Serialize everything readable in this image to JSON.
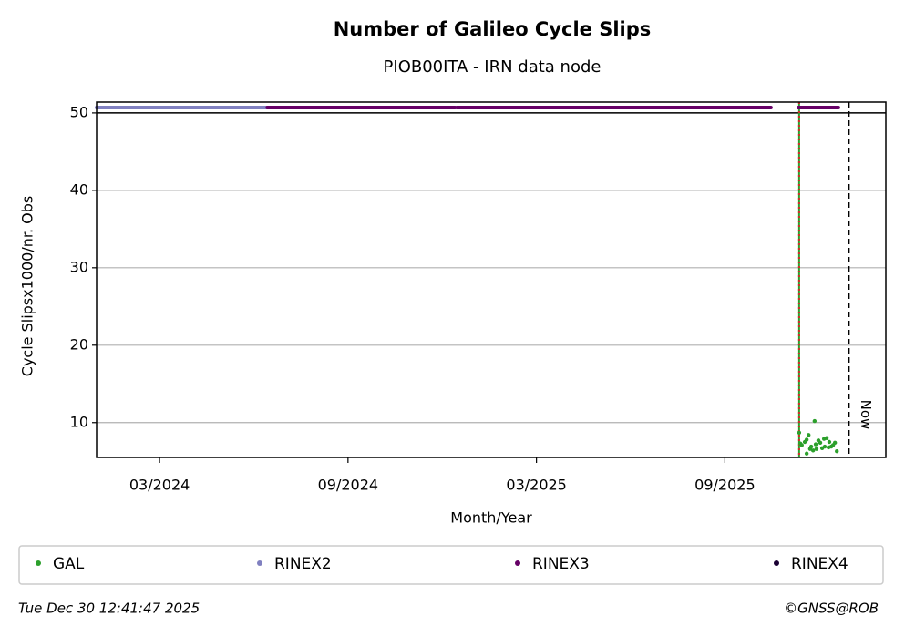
{
  "chart_data": {
    "type": "scatter",
    "title": "Number of Galileo Cycle Slips",
    "subtitle": "PIOB00ITA - IRN data node",
    "x_label": "Month/Year",
    "y_label": "Cycle Slipsx1000/nr. Obs",
    "xlim": [
      2024.0,
      2026.094
    ],
    "ylim": [
      5.5,
      51.4
    ],
    "xticks": [
      {
        "value": 2024.167,
        "label": "03/2024"
      },
      {
        "value": 2024.667,
        "label": "09/2024"
      },
      {
        "value": 2025.167,
        "label": "03/2025"
      },
      {
        "value": 2025.667,
        "label": "09/2025"
      }
    ],
    "yticks": [
      10,
      20,
      30,
      40,
      50
    ],
    "grid": true,
    "hlines": [
      50
    ],
    "markers": [
      {
        "x": 2025.864,
        "color": "#2ca02c",
        "color2": "#d62728"
      },
      {
        "x": 2025.996,
        "label": "Now",
        "color": "#000000"
      }
    ],
    "series": [
      {
        "name": "GAL",
        "color": "#2ca02c",
        "style": "points",
        "x": [
          2025.864,
          2025.867,
          2025.871,
          2025.879,
          2025.884,
          2025.884,
          2025.889,
          2025.893,
          2025.896,
          2025.901,
          2025.905,
          2025.908,
          2025.91,
          2025.915,
          2025.92,
          2025.925,
          2025.93,
          2025.932,
          2025.937,
          2025.942,
          2025.944,
          2025.949,
          2025.954,
          2025.959,
          2025.964
        ],
        "values": [
          8.7,
          7.3,
          7.1,
          7.5,
          7.8,
          6.0,
          8.4,
          6.6,
          6.9,
          6.4,
          10.2,
          7.2,
          6.6,
          7.7,
          7.4,
          6.7,
          7.9,
          6.9,
          8.0,
          6.8,
          7.5,
          6.9,
          7.1,
          7.4,
          6.3
        ]
      },
      {
        "name": "RINEX2",
        "color": "#8080c0",
        "style": "band",
        "x": [
          2024.0,
          2024.453
        ],
        "values": [
          50.7,
          50.7
        ]
      },
      {
        "name": "RINEX3",
        "color": "#660066",
        "style": "band",
        "x": [
          2024.453,
          2024.951,
          null,
          2024.956,
          2025.789,
          null,
          2025.862,
          2025.968
        ],
        "values": [
          50.7,
          50.7,
          null,
          50.7,
          50.7,
          null,
          50.7,
          50.7
        ]
      },
      {
        "name": "RINEX4",
        "color": "#1a0033",
        "style": "band",
        "x": [],
        "values": []
      }
    ]
  },
  "footer": {
    "left": "Tue Dec 30 12:41:47 2025",
    "right": "©GNSS@ROB"
  }
}
